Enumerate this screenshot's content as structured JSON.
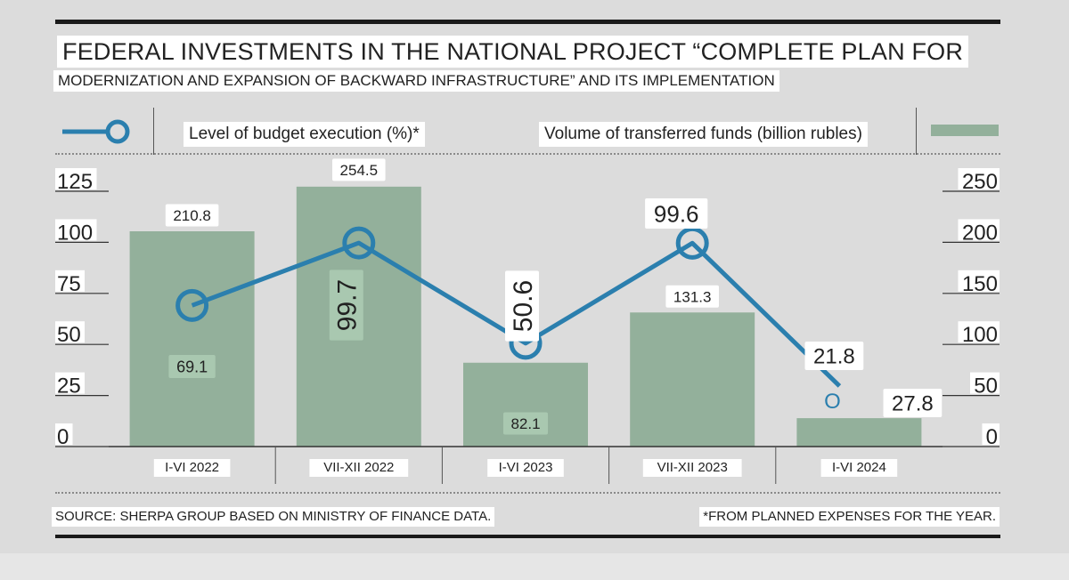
{
  "title": {
    "line1": "FEDERAL INVESTMENTS IN THE NATIONAL PROJECT “COMPLETE PLAN FOR",
    "line2": "MODERNIZATION AND EXPANSION OF BACKWARD INFRASTRUCTURE” AND ITS IMPLEMENTATION"
  },
  "legend": {
    "line_label": "Level of budget execution (%)*",
    "bar_label": "Volume of transferred funds (billion rubles)"
  },
  "source": "SOURCE: SHERPA GROUP BASED ON MINISTRY OF FINANCE DATA.",
  "footnote": "*FROM PLANNED EXPENSES FOR THE YEAR.",
  "colors": {
    "bar": "#93b09b",
    "line": "#2b7fae",
    "rule": "#1a1a1a"
  },
  "chart_data": {
    "type": "bar+line",
    "categories": [
      "I-VI 2022",
      "VII-XII 2022",
      "I-VI 2023",
      "VII-XII 2023",
      "I-VI 2024"
    ],
    "series": [
      {
        "name": "Volume of transferred funds (billion rubles)",
        "type": "bar",
        "axis": "right",
        "values": [
          210.8,
          254.5,
          82.1,
          131.3,
          27.8
        ],
        "labels": [
          "210.8",
          "254.5",
          "82.1",
          "131.3",
          "27.8"
        ]
      },
      {
        "name": "Level of budget execution (%)*",
        "type": "line",
        "axis": "left",
        "values": [
          69.1,
          99.7,
          50.6,
          99.6,
          21.8
        ],
        "labels": [
          "69.1",
          "99.7",
          "50.6",
          "99.6",
          "21.8"
        ]
      }
    ],
    "left_axis": {
      "range": [
        0,
        125
      ],
      "ticks": [
        "0",
        "25",
        "50",
        "75",
        "100",
        "125"
      ]
    },
    "right_axis": {
      "range": [
        0,
        250
      ],
      "ticks": [
        "0",
        "50",
        "100",
        "150",
        "200",
        "250"
      ]
    },
    "last_point_marker": "O"
  }
}
